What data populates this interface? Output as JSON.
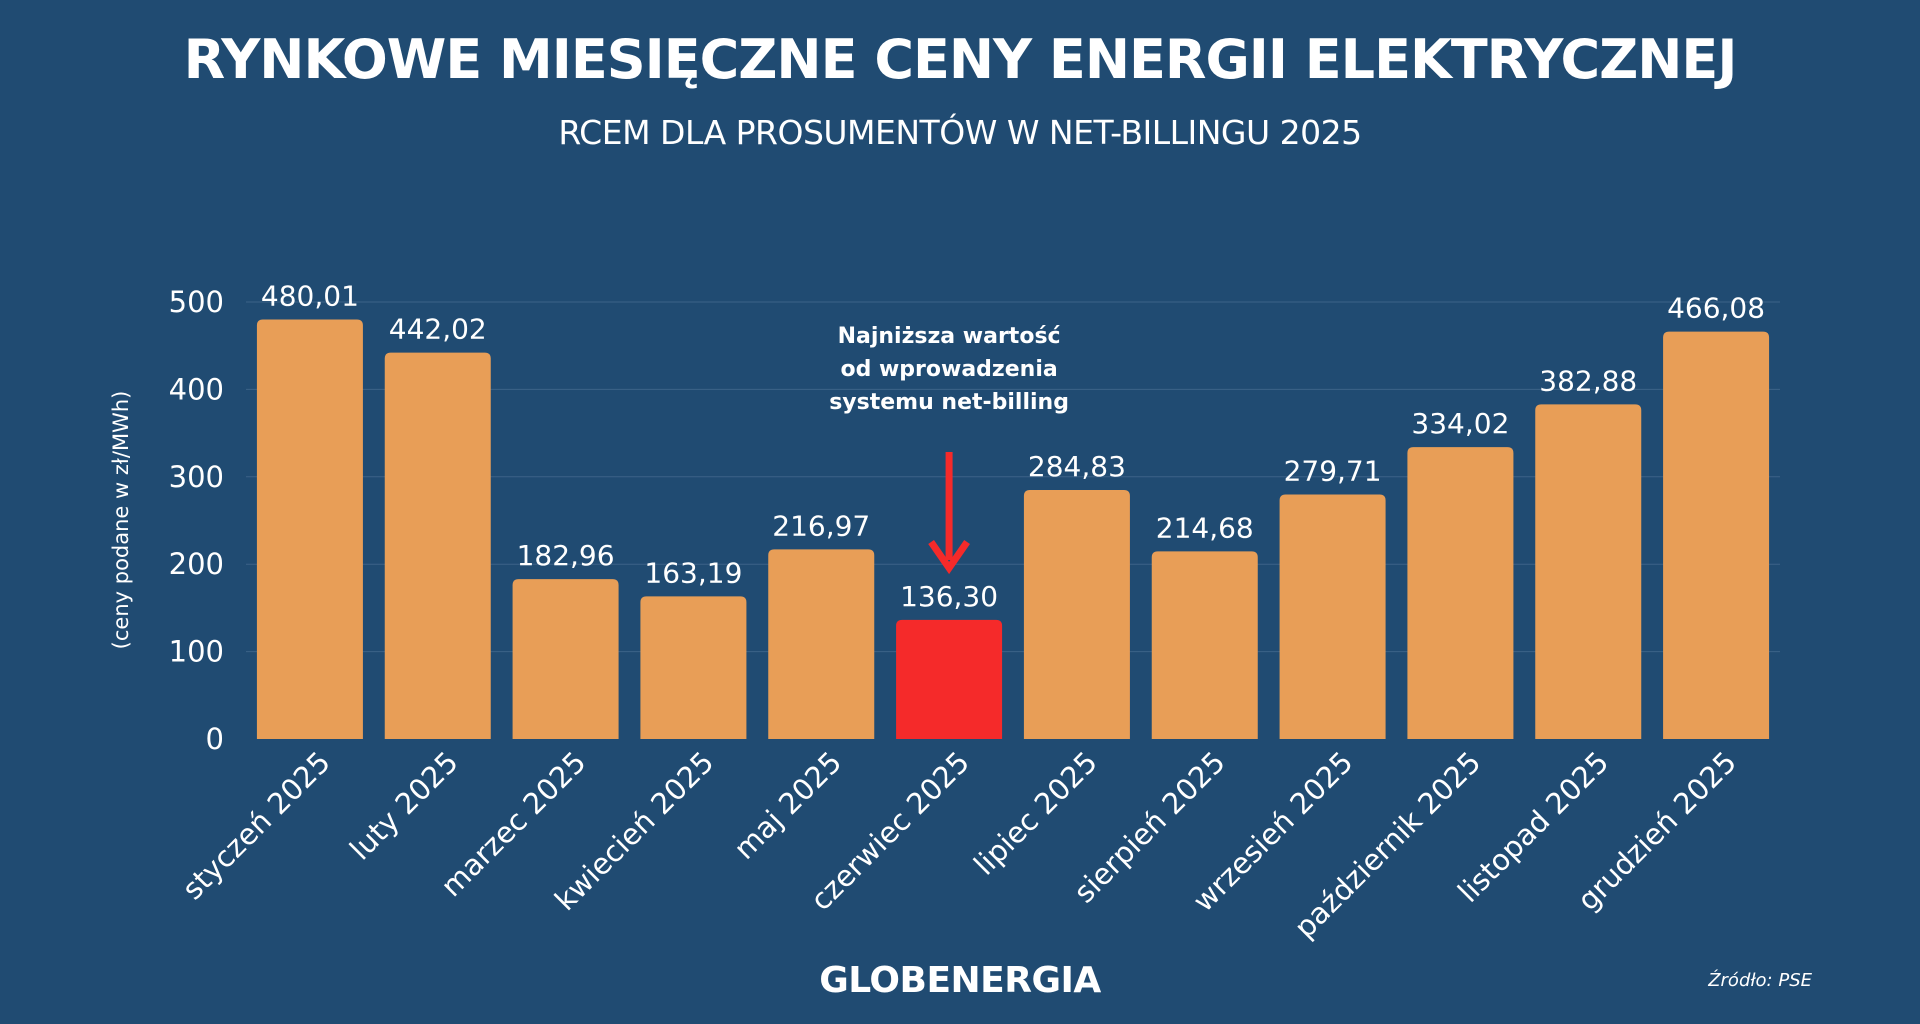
{
  "header": {
    "title": "RYNKOWE MIESIĘCZNE CENY ENERGII ELEKTRYCZNEJ",
    "subtitle": "RCEM DLA PROSUMENTÓW W NET-BILLINGU 2025"
  },
  "chart_data": {
    "type": "bar",
    "title": "RYNKOWE MIESIĘCZNE CENY ENERGII ELEKTRYCZNEJ",
    "subtitle": "RCEM DLA PROSUMENTÓW W NET-BILLINGU 2025",
    "xlabel": "",
    "ylabel": "(ceny podane w zł/MWh)",
    "ylim": [
      0,
      500
    ],
    "yticks": [
      0,
      100,
      200,
      300,
      400,
      500
    ],
    "grid": true,
    "categories": [
      "styczeń 2025",
      "luty 2025",
      "marzec 2025",
      "kwiecień 2025",
      "maj 2025",
      "czerwiec 2025",
      "lipiec 2025",
      "sierpień 2025",
      "wrzesień 2025",
      "październik 2025",
      "listopad 2025",
      "grudzień 2025"
    ],
    "values": [
      480.01,
      442.02,
      182.96,
      163.19,
      216.97,
      136.3,
      284.83,
      214.68,
      279.71,
      334.02,
      382.88,
      466.08
    ],
    "value_labels": [
      "480,01",
      "442,02",
      "182,96",
      "163,19",
      "216,97",
      "136,30",
      "284,83",
      "214,68",
      "279,71",
      "334,02",
      "382,88",
      "466,08"
    ],
    "highlight_index": 5,
    "annotation": {
      "lines": [
        "Najniższa wartość",
        "od wprowadzenia",
        "systemu net-billing"
      ],
      "target_index": 5
    }
  },
  "colors": {
    "background": "#204b72",
    "bar": "#e89e57",
    "highlight": "#f52a2a",
    "text": "#ffffff",
    "grid": "#3c6388"
  },
  "branding": {
    "logo": "GLOBENERGIA"
  },
  "footer": {
    "source": "Źródło: PSE"
  }
}
